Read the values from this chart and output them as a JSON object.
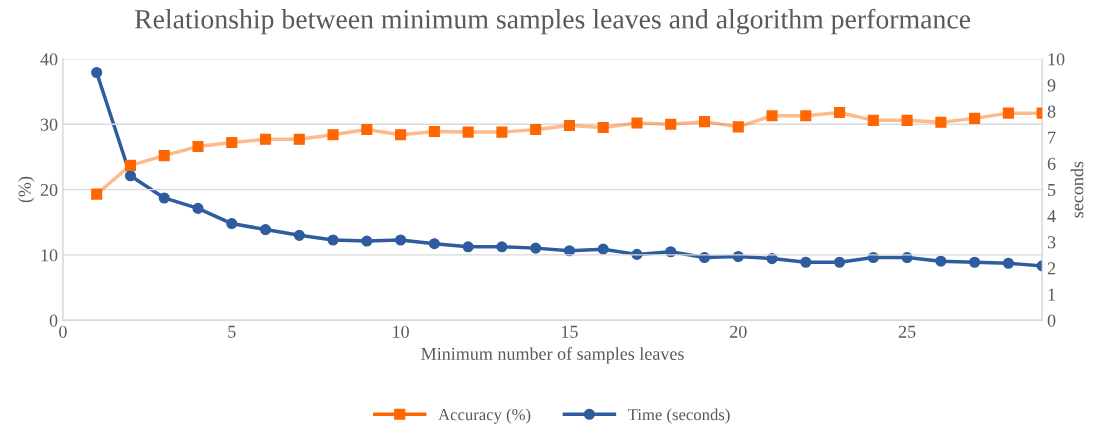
{
  "chart_data": {
    "type": "line",
    "title": "Relationship between minimum samples leaves and algorithm performance",
    "xlabel": "Minimum number of samples leaves",
    "ylabel": "(%)",
    "y2label": "seconds",
    "x": [
      1,
      2,
      3,
      4,
      5,
      6,
      7,
      8,
      9,
      10,
      11,
      12,
      13,
      14,
      15,
      16,
      17,
      18,
      19,
      20,
      21,
      22,
      23,
      24,
      25,
      26,
      27,
      28,
      29
    ],
    "series": [
      {
        "name": "Accuracy (%)",
        "color": "#ff6600",
        "marker": "square",
        "values": [
          19.3,
          23.7,
          25.2,
          26.6,
          27.2,
          27.7,
          27.7,
          28.4,
          29.2,
          28.4,
          28.9,
          28.8,
          28.8,
          29.2,
          29.8,
          29.5,
          30.2,
          30.0,
          30.4,
          29.6,
          31.3,
          31.3,
          31.8,
          30.6,
          30.6,
          30.3,
          30.9,
          31.7,
          31.7
        ]
      },
      {
        "name": "Time (seconds)",
        "color": "#2e5c9e",
        "marker": "circle",
        "axis": "y2",
        "values": [
          9.48,
          5.53,
          4.68,
          4.28,
          3.7,
          3.47,
          3.25,
          3.07,
          3.03,
          3.07,
          2.93,
          2.81,
          2.81,
          2.76,
          2.66,
          2.72,
          2.52,
          2.62,
          2.4,
          2.44,
          2.36,
          2.22,
          2.22,
          2.4,
          2.4,
          2.26,
          2.22,
          2.18,
          2.08
        ]
      }
    ],
    "xlim": [
      0,
      29
    ],
    "xticks": [
      0,
      5,
      10,
      15,
      20,
      25
    ],
    "ylim": [
      0,
      40
    ],
    "yticks": [
      0,
      10,
      20,
      30,
      40
    ],
    "y2lim": [
      0,
      10
    ],
    "y2ticks": [
      0,
      1,
      2,
      3,
      4,
      5,
      6,
      7,
      8,
      9,
      10
    ],
    "grid": "y",
    "legend": "bottom",
    "line_style": "solid"
  }
}
